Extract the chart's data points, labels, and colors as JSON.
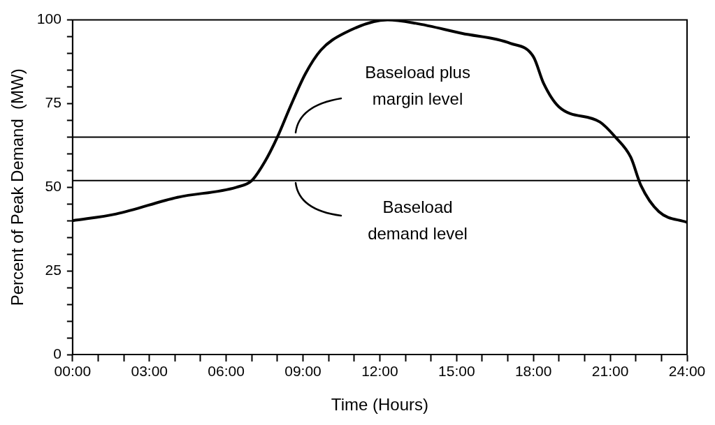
{
  "chart_data": {
    "type": "line",
    "xlabel": "Time (Hours)",
    "ylabel": "Percent of Peak Demand  (MW)",
    "x": [
      0,
      1.7,
      4.1,
      6.4,
      7.0,
      7.5,
      8.0,
      8.5,
      9.1,
      9.7,
      10.6,
      12.3,
      13.4,
      15.2,
      17.1,
      18.0,
      18.4,
      19.0,
      20.6,
      21.2,
      21.8,
      22.2,
      22.9,
      24
    ],
    "series": [
      {
        "color": "#000000",
        "values": [
          40,
          42,
          47,
          50,
          52,
          57.5,
          65,
          74,
          84,
          91,
          96,
          100,
          99,
          96,
          93,
          89,
          81,
          74,
          69.5,
          65,
          59,
          50.5,
          42.7,
          39.5
        ]
      }
    ],
    "xlim": [
      0,
      24
    ],
    "xticks": [
      {
        "value": 0,
        "label": "00:00"
      },
      {
        "value": 1,
        "label": null
      },
      {
        "value": 2,
        "label": null
      },
      {
        "value": 3,
        "label": "03:00"
      },
      {
        "value": 4,
        "label": null
      },
      {
        "value": 5,
        "label": null
      },
      {
        "value": 6,
        "label": "06:00"
      },
      {
        "value": 7,
        "label": null
      },
      {
        "value": 8,
        "label": null
      },
      {
        "value": 9,
        "label": "09:00"
      },
      {
        "value": 10,
        "label": null
      },
      {
        "value": 11,
        "label": null
      },
      {
        "value": 12,
        "label": "12:00"
      },
      {
        "value": 13,
        "label": null
      },
      {
        "value": 14,
        "label": null
      },
      {
        "value": 15,
        "label": "15:00"
      },
      {
        "value": 16,
        "label": null
      },
      {
        "value": 17,
        "label": null
      },
      {
        "value": 18,
        "label": "18:00"
      },
      {
        "value": 19,
        "label": null
      },
      {
        "value": 20,
        "label": null
      },
      {
        "value": 21,
        "label": "21:00"
      },
      {
        "value": 22,
        "label": null
      },
      {
        "value": 23,
        "label": null
      },
      {
        "value": 24,
        "label": "24:00"
      }
    ],
    "ylim": [
      0,
      100
    ],
    "yticks": [
      0,
      {
        "value": 5,
        "label": null
      },
      {
        "value": 10,
        "label": null
      },
      {
        "value": 15,
        "label": null
      },
      {
        "value": 20,
        "label": null
      },
      25,
      {
        "value": 30,
        "label": null
      },
      {
        "value": 35,
        "label": null
      },
      {
        "value": 40,
        "label": null
      },
      {
        "value": 45,
        "label": null
      },
      50,
      {
        "value": 55,
        "label": null
      },
      {
        "value": 60,
        "label": null
      },
      {
        "value": 65,
        "label": null
      },
      {
        "value": 70,
        "label": null
      },
      75,
      {
        "value": 80,
        "label": null
      },
      {
        "value": 85,
        "label": null
      },
      {
        "value": 90,
        "label": null
      },
      {
        "value": 95,
        "label": null
      },
      100
    ],
    "ref_lines": [
      {
        "axis": "y",
        "value": 65,
        "label": "Baseload plus margin level",
        "color": "#000000"
      },
      {
        "axis": "y",
        "value": 52,
        "label": "Baseload demand level",
        "color": "#000000"
      }
    ],
    "grid": false,
    "legend": false,
    "marker": "none",
    "line_style": "solid"
  }
}
